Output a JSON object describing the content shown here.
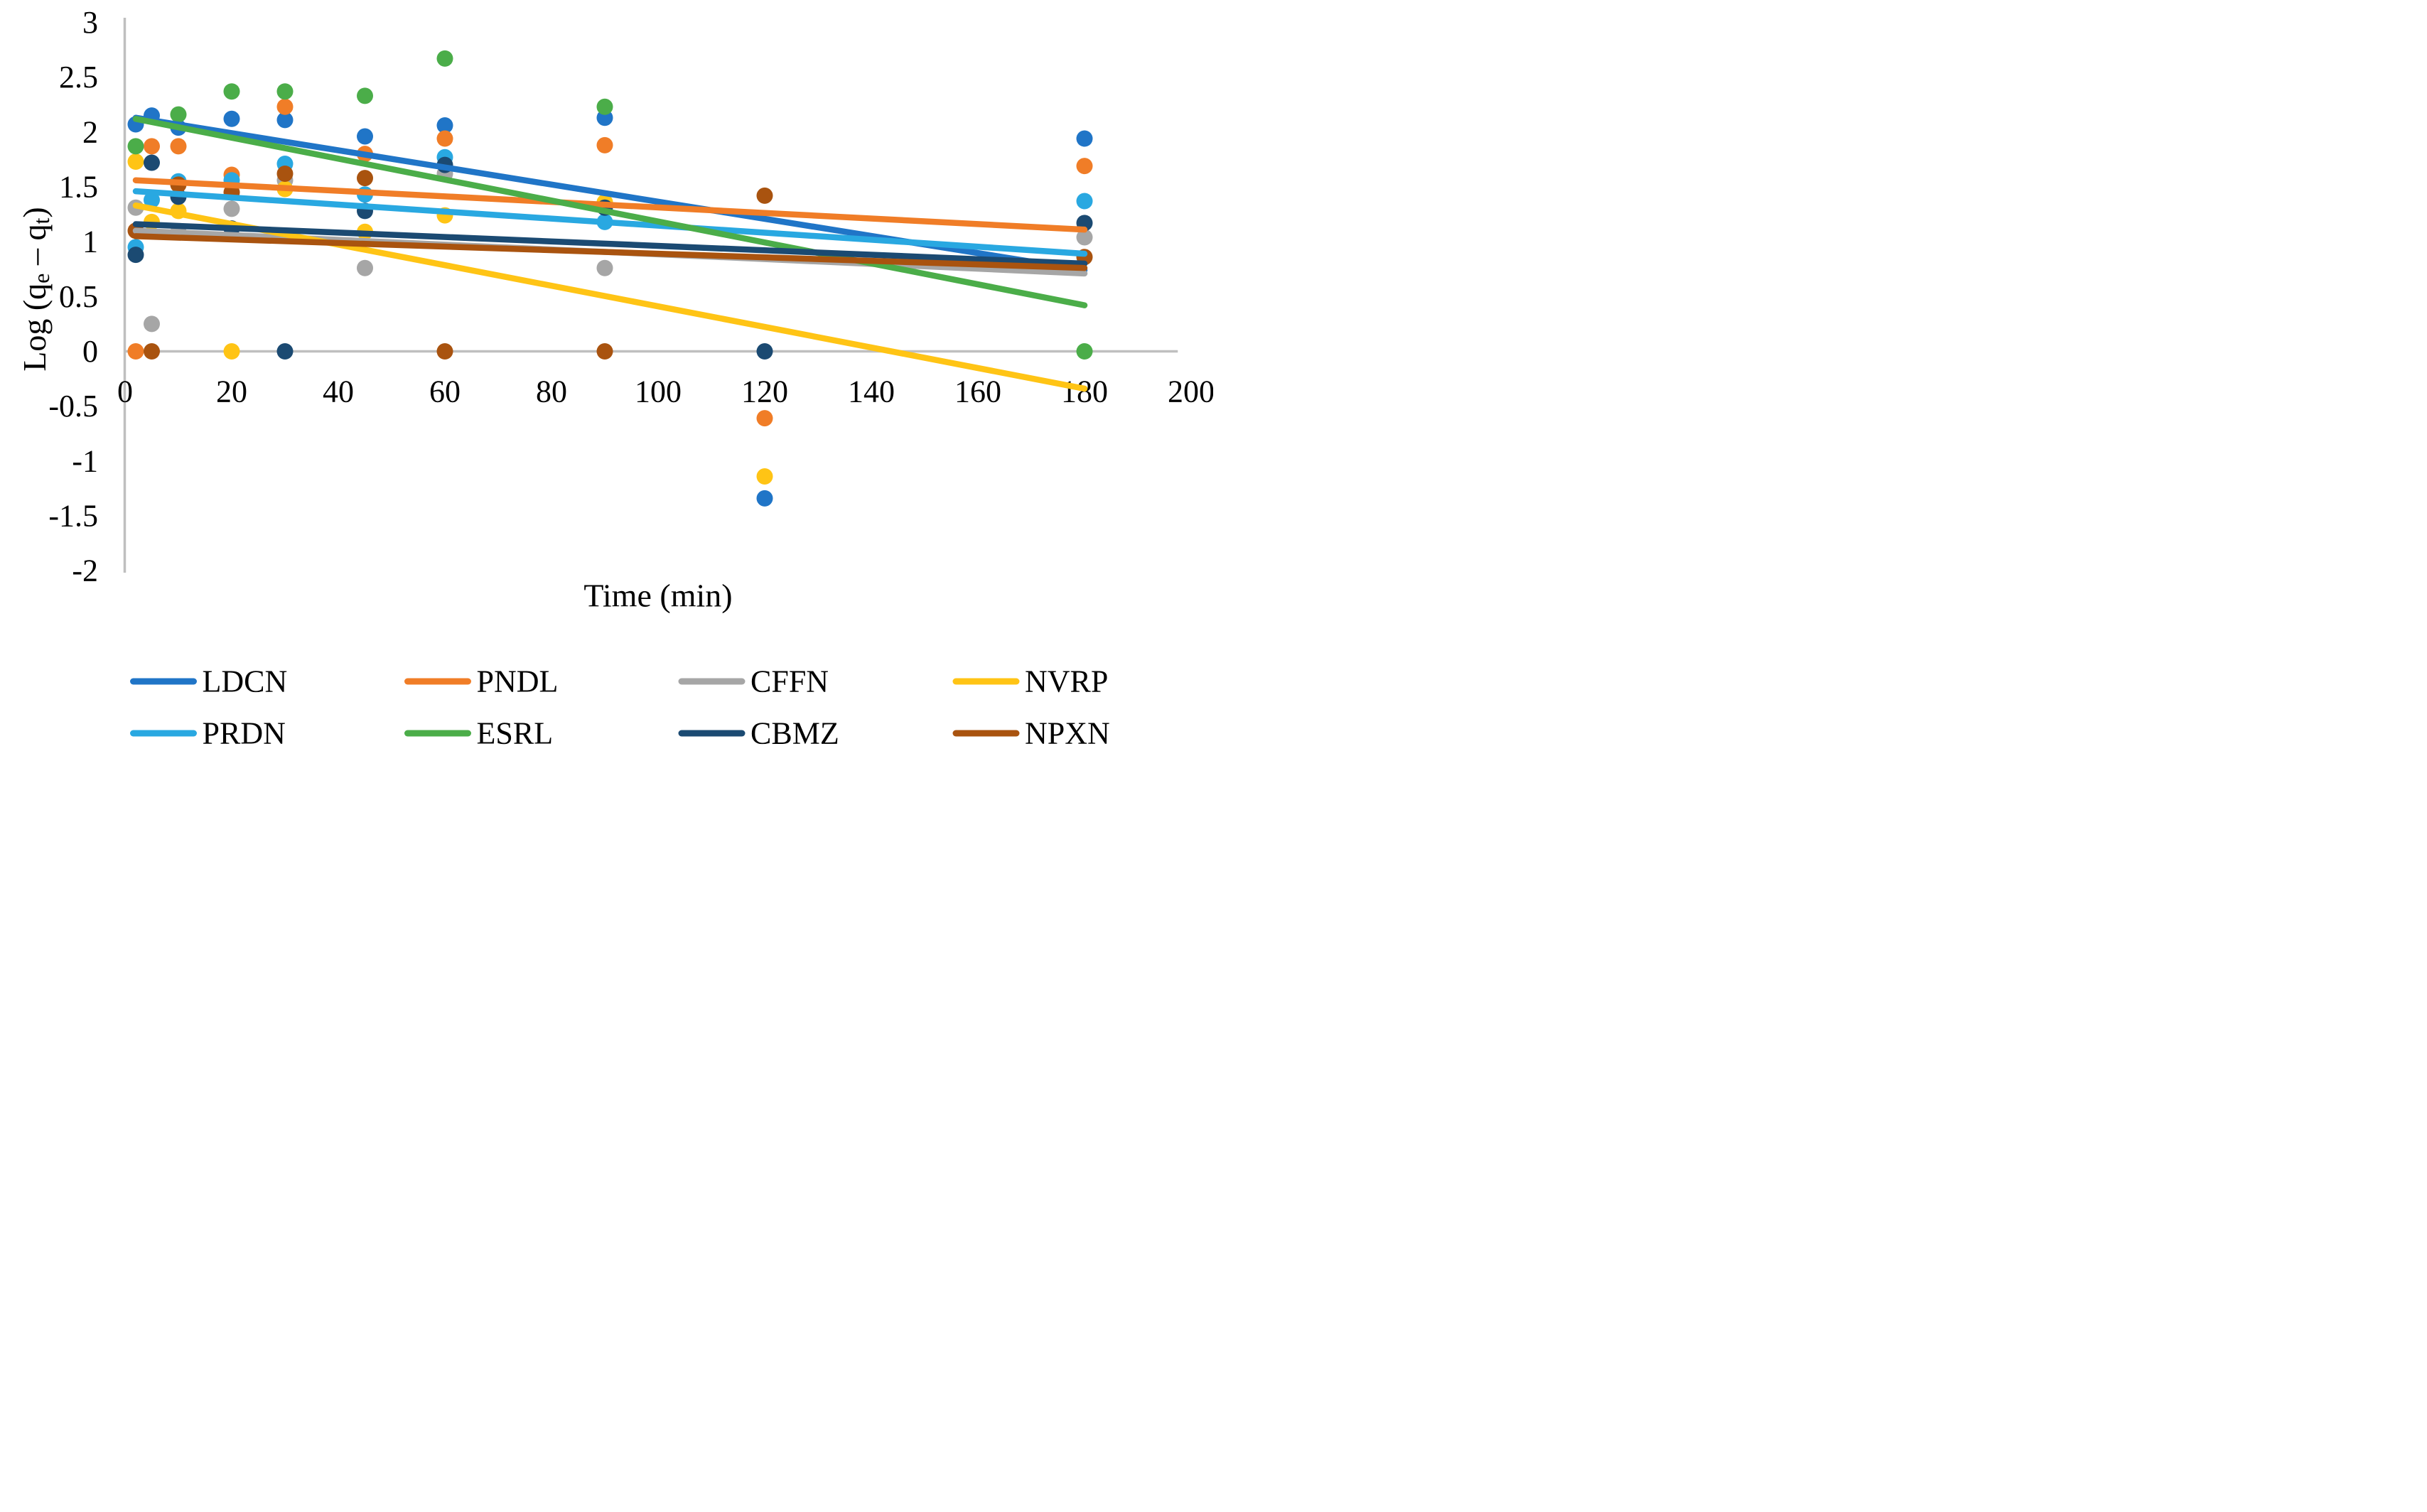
{
  "chart_data": {
    "type": "scatter",
    "title": "",
    "xlabel": "Time (min)",
    "ylabel": "Log (qe – qt)",
    "ylabel_rich": [
      {
        "t": "Log (q"
      },
      {
        "sub": "e"
      },
      {
        "t": " – q"
      },
      {
        "sub": "t"
      },
      {
        "t": ")"
      }
    ],
    "xlim": [
      0,
      200
    ],
    "ylim": [
      -2,
      3
    ],
    "xticks": [
      0,
      20,
      40,
      60,
      80,
      100,
      120,
      140,
      160,
      180,
      200
    ],
    "yticks": [
      3,
      2.5,
      2,
      1.5,
      1,
      0.5,
      0,
      -0.5,
      -1,
      -1.5,
      -2
    ],
    "grid": false,
    "legend_position": "bottom",
    "axis_color": "#BFBFBF",
    "text_color": "#000000",
    "x": [
      2,
      5,
      10,
      20,
      30,
      45,
      60,
      90,
      120,
      180
    ],
    "series": [
      {
        "name": "LDCN",
        "color": "#2075C7",
        "values": [
          2.07,
          2.15,
          2.04,
          2.12,
          2.11,
          1.96,
          2.06,
          2.13,
          -1.34,
          1.94
        ],
        "trend": {
          "x1": 2,
          "y1": 2.13,
          "x2": 180,
          "y2": 0.74
        }
      },
      {
        "name": "PNDL",
        "color": "#F07D27",
        "values": [
          0,
          1.87,
          1.87,
          1.61,
          2.23,
          1.8,
          1.94,
          1.88,
          -0.61,
          1.69
        ],
        "trend": {
          "x1": 2,
          "y1": 1.56,
          "x2": 180,
          "y2": 1.11
        }
      },
      {
        "name": "CFFN",
        "color": "#A6A6A6",
        "values": [
          1.31,
          0.25,
          1.09,
          1.3,
          1.56,
          0.76,
          1.62,
          0.76,
          null,
          1.04
        ],
        "trend": {
          "x1": 2,
          "y1": 1.1,
          "x2": 180,
          "y2": 0.71
        }
      },
      {
        "name": "NVRP",
        "color": "#FFC415",
        "values": [
          1.73,
          1.18,
          1.28,
          0,
          1.48,
          1.09,
          1.24,
          1.36,
          -1.14,
          null
        ],
        "trend": {
          "x1": 2,
          "y1": 1.33,
          "x2": 180,
          "y2": -0.34
        }
      },
      {
        "name": "PRDN",
        "color": "#29A8E1",
        "values": [
          0.95,
          1.38,
          1.55,
          1.56,
          1.71,
          1.43,
          1.77,
          1.18,
          null,
          1.37
        ],
        "trend": {
          "x1": 2,
          "y1": 1.46,
          "x2": 180,
          "y2": 0.89
        }
      },
      {
        "name": "ESRL",
        "color": "#4BAD49",
        "values": [
          1.87,
          null,
          2.16,
          2.37,
          2.37,
          2.33,
          2.67,
          2.23,
          null,
          0
        ],
        "trend": {
          "x1": 2,
          "y1": 2.12,
          "x2": 180,
          "y2": 0.42
        }
      },
      {
        "name": "CBMZ",
        "color": "#1B4A72",
        "values": [
          0.88,
          1.72,
          1.41,
          1.12,
          0,
          1.28,
          1.7,
          1.31,
          0,
          1.17
        ],
        "trend": {
          "x1": 2,
          "y1": 1.16,
          "x2": 180,
          "y2": 0.8
        }
      },
      {
        "name": "NPXN",
        "color": "#A9530F",
        "values": [
          1.1,
          0,
          1.52,
          1.45,
          1.62,
          1.58,
          0,
          0,
          1.42,
          0.86
        ],
        "trend": {
          "x1": 2,
          "y1": 1.05,
          "x2": 180,
          "y2": 0.76
        }
      }
    ],
    "legend_rows": [
      [
        "LDCN",
        "PNDL",
        "CFFN",
        "NVRP"
      ],
      [
        "PRDN",
        "ESRL",
        "CBMZ",
        "NPXN"
      ]
    ]
  }
}
